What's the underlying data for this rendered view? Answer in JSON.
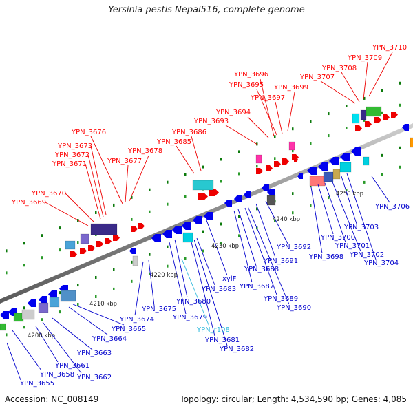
{
  "title": "Yersinia pestis Nepal516, complete genome",
  "footer": {
    "accession": "Accession: NC_008149",
    "summary": "Topology: circular; Length: 4,534,590 bp; Genes: 4,085"
  },
  "colors": {
    "forward_label": "#ff0000",
    "reverse_label": "#0000cc",
    "rna_label": "#33bbdd",
    "backbone": "#909090"
  },
  "ticks": [
    "4200 kbp",
    "4210 kbp",
    "4220 kbp",
    "4230 kbp",
    "4240 kbp",
    "4250 kbp"
  ],
  "labels_forward": [
    "YPN_3669",
    "YPN_3670",
    "YPN_3671",
    "YPN_3672",
    "YPN_3673",
    "YPN_3676",
    "YPN_3677",
    "YPN_3678",
    "YPN_3685",
    "YPN_3686",
    "YPN_3693",
    "YPN_3694",
    "YPN_3695",
    "YPN_3696",
    "YPN_3697",
    "YPN_3699",
    "YPN_3707",
    "YPN_3708",
    "YPN_3709",
    "YPN_3710"
  ],
  "labels_reverse": [
    "YPN_3655",
    "YPN_3658",
    "YPN_3661",
    "YPN_3662",
    "YPN_3663",
    "YPN_3664",
    "YPN_3665",
    "YPN_3674",
    "YPN_3675",
    "YPN_3679",
    "YPN_3680",
    "YPN_3681",
    "YPN_3682",
    "YPN_3683",
    "xylF",
    "YPN_3687",
    "YPN_3688",
    "YPN_3689",
    "YPN_3690",
    "YPN_3691",
    "YPN_3692",
    "YPN_3698",
    "YPN_3700",
    "YPN_3701",
    "YPN_3702",
    "YPN_3703",
    "YPN_3704",
    "YPN_3706"
  ],
  "labels_rna": [
    "YPN_r108"
  ]
}
